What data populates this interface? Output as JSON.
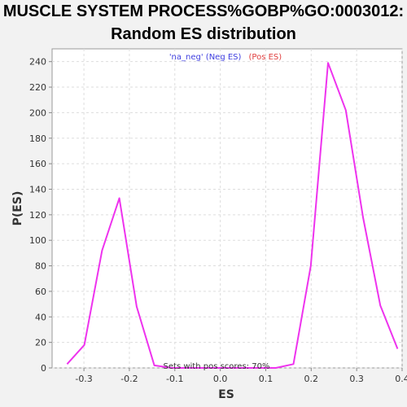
{
  "chart_data": {
    "type": "line",
    "title_line1": "MUSCLE SYSTEM PROCESS%GOBP%GO:0003012:",
    "title_line2": "Random ES distribution",
    "xlabel": "ES",
    "ylabel": "P(ES)",
    "xlim": [
      -0.37,
      0.4
    ],
    "ylim": [
      0,
      250
    ],
    "x_ticks": [
      -0.3,
      -0.2,
      -0.1,
      0.0,
      0.1,
      0.2,
      0.3,
      0.4
    ],
    "x_tick_labels": [
      "-0.3",
      "-0.2",
      "-0.1",
      "0.0",
      "0.1",
      "0.2",
      "0.3",
      "0.4"
    ],
    "y_ticks": [
      0,
      20,
      40,
      60,
      80,
      100,
      120,
      140,
      160,
      180,
      200,
      220,
      240
    ],
    "y_tick_labels": [
      "0",
      "20",
      "40",
      "60",
      "80",
      "100",
      "120",
      "140",
      "160",
      "180",
      "200",
      "220",
      "240"
    ],
    "grid": true,
    "legend": {
      "placement": "top-center",
      "neg_label": "'na_neg' (Neg ES)",
      "pos_label": "(Pos ES)",
      "neg_color": "#4040e0",
      "pos_color": "#e04040"
    },
    "annotation": "Sets with pos scores: 70%",
    "series": [
      {
        "color": "#ee33ee",
        "x": [
          -0.337,
          -0.299,
          -0.26,
          -0.222,
          -0.184,
          -0.145,
          -0.107,
          -0.069,
          -0.031,
          0.008,
          0.046,
          0.084,
          0.122,
          0.161,
          0.199,
          0.237,
          0.276,
          0.314,
          0.352,
          0.39
        ],
        "y": [
          3,
          18,
          92,
          133,
          48,
          2,
          0,
          0,
          0,
          0,
          0,
          0,
          0,
          3,
          80,
          239,
          202,
          118,
          49,
          15
        ]
      }
    ]
  }
}
